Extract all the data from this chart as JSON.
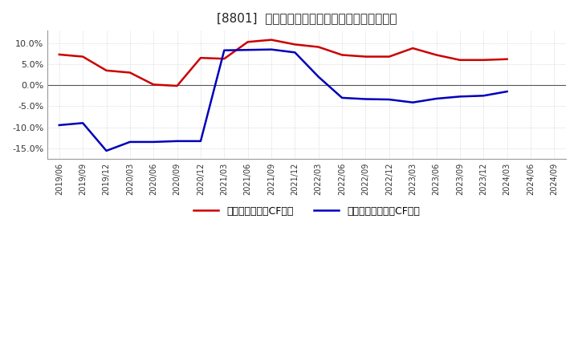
{
  "title": "[8801]  有利子負債キャッシュフロー比率の推移",
  "x_labels": [
    "2019/06",
    "2019/09",
    "2019/12",
    "2020/03",
    "2020/06",
    "2020/09",
    "2020/12",
    "2021/03",
    "2021/06",
    "2021/09",
    "2021/12",
    "2022/03",
    "2022/06",
    "2022/09",
    "2022/12",
    "2023/03",
    "2023/06",
    "2023/09",
    "2023/12",
    "2024/03",
    "2024/06",
    "2024/09"
  ],
  "red_values": [
    7.3,
    6.8,
    3.5,
    3.0,
    0.15,
    -0.15,
    6.5,
    6.3,
    10.3,
    10.8,
    9.7,
    9.1,
    7.2,
    6.8,
    6.8,
    8.8,
    7.2,
    6.0,
    6.0,
    6.2,
    null,
    null
  ],
  "blue_values": [
    -9.5,
    -9.0,
    -15.6,
    -13.5,
    -13.5,
    -13.3,
    -13.3,
    8.3,
    8.4,
    8.5,
    7.8,
    2.0,
    -3.0,
    -3.3,
    -3.4,
    -4.1,
    -3.2,
    -2.7,
    -2.5,
    -1.5,
    null,
    null
  ],
  "red_color": "#cc0000",
  "blue_color": "#0000bb",
  "background_color": "#ffffff",
  "grid_color": "#bbbbbb",
  "ylim": [
    -17.5,
    13.0
  ],
  "yticks": [
    -15.0,
    -10.0,
    -5.0,
    0.0,
    5.0,
    10.0
  ],
  "legend_red": "有利子負債営業CF比率",
  "legend_blue": "有利子負債フリーCF比率",
  "title_fontsize": 11
}
